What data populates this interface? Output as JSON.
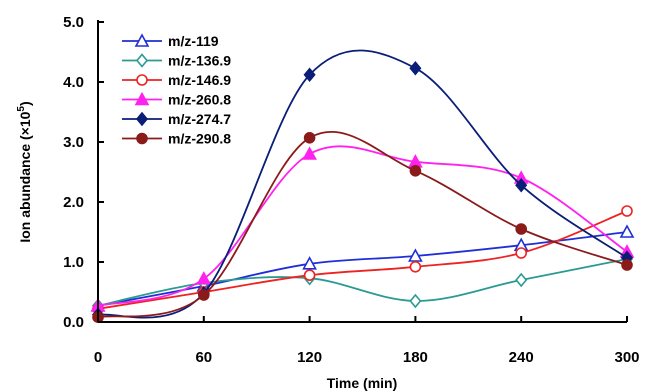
{
  "chart_data": {
    "type": "line",
    "xlabel": "Time (min)",
    "ylabel_main": "Ion abundance (",
    "ylabel_mult": "×10",
    "ylabel_exp": "5",
    "ylabel_close": ")",
    "x": [
      0,
      60,
      120,
      180,
      240,
      300
    ],
    "x_ticks": [
      "0",
      "60",
      "120",
      "180",
      "240",
      "300"
    ],
    "y_ticks": [
      "0.0",
      "1.0",
      "2.0",
      "3.0",
      "4.0",
      "5.0"
    ],
    "xlim": [
      0,
      300
    ],
    "ylim": [
      0,
      5
    ],
    "grid": false,
    "legend_position": "top-left",
    "series": [
      {
        "name": "m/z-119",
        "color": "#1f2fd6",
        "marker": "open-triangle",
        "values": [
          0.27,
          0.6,
          0.97,
          1.1,
          1.28,
          1.5
        ]
      },
      {
        "name": "m/z-136.9",
        "color": "#2a9a93",
        "marker": "open-diamond",
        "values": [
          0.27,
          0.65,
          0.73,
          0.35,
          0.7,
          1.05
        ]
      },
      {
        "name": "m/z-146.9",
        "color": "#ee2222",
        "marker": "open-circle",
        "values": [
          0.22,
          0.5,
          0.78,
          0.92,
          1.15,
          1.85
        ]
      },
      {
        "name": "m/z-260.8",
        "color": "#ff22ee",
        "marker": "filled-triangle",
        "values": [
          0.27,
          0.72,
          2.8,
          2.67,
          2.4,
          1.17
        ]
      },
      {
        "name": "m/z-274.7",
        "color": "#0a1e78",
        "marker": "filled-diamond",
        "values": [
          0.12,
          0.48,
          4.12,
          4.23,
          2.28,
          1.07
        ]
      },
      {
        "name": "m/z-290.8",
        "color": "#8b1a1a",
        "marker": "filled-circle",
        "values": [
          0.08,
          0.45,
          3.07,
          2.52,
          1.55,
          0.95
        ]
      }
    ]
  }
}
